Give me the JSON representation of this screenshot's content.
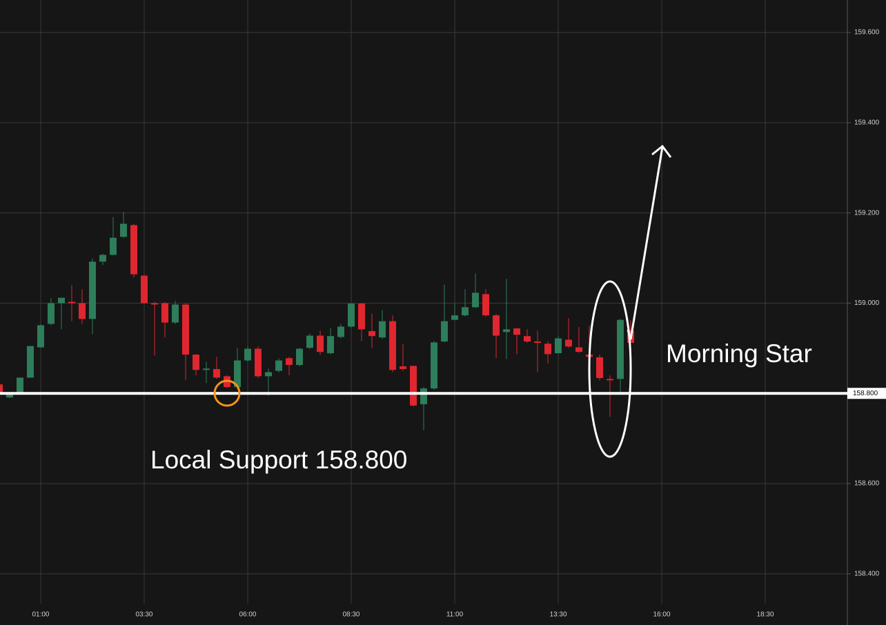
{
  "chart_data": {
    "type": "candlestick",
    "x": [
      0,
      0.25,
      0.5,
      0.75,
      1,
      1.25,
      1.5,
      1.75,
      2,
      2.25,
      2.5,
      2.75,
      3,
      3.25,
      3.5,
      3.75,
      4,
      4.25,
      4.5,
      4.75,
      5,
      5.25,
      5.5,
      5.75,
      6,
      6.25,
      6.5,
      6.75,
      7,
      7.25,
      7.5,
      7.75,
      8,
      8.25,
      8.5,
      8.75,
      9,
      9.25,
      9.5,
      9.75,
      10,
      10.25,
      10.5,
      10.75,
      11,
      11.25,
      11.5,
      11.75,
      12,
      12.25,
      12.5,
      12.75,
      13,
      13.25,
      13.5,
      13.75,
      14,
      14.25,
      14.5,
      14.75,
      15,
      15.25
    ],
    "open": [
      158.82,
      158.791,
      158.8,
      158.835,
      158.902,
      158.954,
      159.0,
      159.003,
      159.0,
      158.965,
      159.092,
      159.107,
      159.147,
      159.173,
      159.061,
      159.0,
      159.0,
      158.957,
      158.997,
      158.886,
      158.852,
      158.854,
      158.838,
      158.814,
      158.873,
      158.899,
      158.838,
      158.85,
      158.878,
      158.863,
      158.901,
      158.928,
      158.889,
      158.925,
      158.948,
      158.999,
      158.938,
      158.924,
      158.96,
      158.86,
      158.861,
      158.776,
      158.811,
      158.915,
      158.963,
      158.973,
      158.991,
      159.02,
      158.973,
      158.936,
      158.944,
      158.927,
      158.915,
      158.91,
      158.889,
      158.919,
      158.902,
      158.886,
      158.88,
      158.832,
      158.832,
      158.939
    ],
    "high": [
      158.825,
      158.802,
      158.835,
      158.905,
      158.954,
      159.011,
      159.012,
      159.04,
      159.031,
      159.099,
      159.11,
      159.191,
      159.202,
      159.176,
      159.063,
      159.003,
      159.003,
      159.005,
      159.0,
      158.887,
      158.87,
      158.881,
      158.84,
      158.901,
      158.904,
      158.904,
      158.855,
      158.878,
      158.881,
      158.901,
      158.933,
      158.939,
      158.945,
      158.954,
      159.0,
      159.0,
      158.977,
      158.985,
      158.973,
      158.909,
      158.861,
      158.814,
      158.916,
      159.041,
      159.0,
      159.031,
      159.066,
      159.031,
      158.976,
      159.054,
      158.945,
      158.942,
      158.939,
      158.916,
      158.927,
      158.967,
      158.947,
      158.95,
      158.886,
      158.84,
      158.965,
      158.962
    ],
    "low": [
      158.794,
      158.789,
      158.799,
      158.834,
      158.901,
      158.951,
      158.942,
      158.96,
      158.954,
      158.931,
      159.084,
      159.106,
      159.145,
      159.057,
      158.999,
      158.884,
      158.924,
      158.954,
      158.829,
      158.84,
      158.823,
      158.832,
      158.812,
      158.809,
      158.87,
      158.834,
      158.794,
      158.847,
      158.84,
      158.86,
      158.898,
      158.886,
      158.887,
      158.922,
      158.945,
      158.916,
      158.901,
      158.921,
      158.847,
      158.85,
      158.771,
      158.718,
      158.808,
      158.913,
      158.962,
      158.971,
      158.989,
      158.97,
      158.878,
      158.876,
      158.887,
      158.912,
      158.847,
      158.866,
      158.887,
      158.901,
      158.89,
      158.84,
      158.829,
      158.748,
      158.802,
      158.912
    ],
    "close": [
      158.8,
      158.799,
      158.835,
      158.905,
      158.951,
      159.0,
      159.012,
      159.0,
      158.965,
      159.092,
      159.107,
      159.145,
      159.176,
      159.064,
      159.0,
      158.997,
      158.957,
      158.997,
      158.886,
      158.852,
      158.855,
      158.835,
      158.814,
      158.873,
      158.899,
      158.838,
      158.847,
      158.873,
      158.863,
      158.899,
      158.928,
      158.892,
      158.927,
      158.948,
      158.999,
      158.942,
      158.927,
      158.96,
      158.852,
      158.854,
      158.773,
      158.811,
      158.913,
      158.96,
      158.973,
      158.991,
      159.023,
      158.973,
      158.928,
      158.942,
      158.93,
      158.915,
      158.912,
      158.887,
      158.922,
      158.904,
      158.892,
      158.881,
      158.834,
      158.829,
      158.963,
      158.912
    ],
    "up_color": "#2e7d5b",
    "down_color": "#e0262f",
    "xlim": [
      0.017,
      20.483
    ],
    "ylim": [
      158.334,
      159.672
    ],
    "xticks": [
      {
        "value": 1,
        "label": "01:00"
      },
      {
        "value": 3.5,
        "label": "03:30"
      },
      {
        "value": 6,
        "label": "06:00"
      },
      {
        "value": 8.5,
        "label": "08:30"
      },
      {
        "value": 11,
        "label": "11:00"
      },
      {
        "value": 13.5,
        "label": "13:30"
      },
      {
        "value": 16,
        "label": "16:00"
      },
      {
        "value": 18.5,
        "label": "18:30"
      }
    ],
    "yticks": [
      {
        "value": 158.4,
        "label": "158.400"
      },
      {
        "value": 158.6,
        "label": "158.600"
      },
      {
        "value": 158.8,
        "label": "158.800"
      },
      {
        "value": 159,
        "label": "159.000"
      },
      {
        "value": 159.2,
        "label": "159.200"
      },
      {
        "value": 159.4,
        "label": "159.400"
      },
      {
        "value": 159.6,
        "label": "159.600"
      }
    ],
    "grid": true,
    "support": {
      "value": 158.8,
      "label": "158.800"
    },
    "annotations": [
      {
        "text": "Local Support 158.800"
      },
      {
        "text": "Morning Star"
      }
    ]
  }
}
